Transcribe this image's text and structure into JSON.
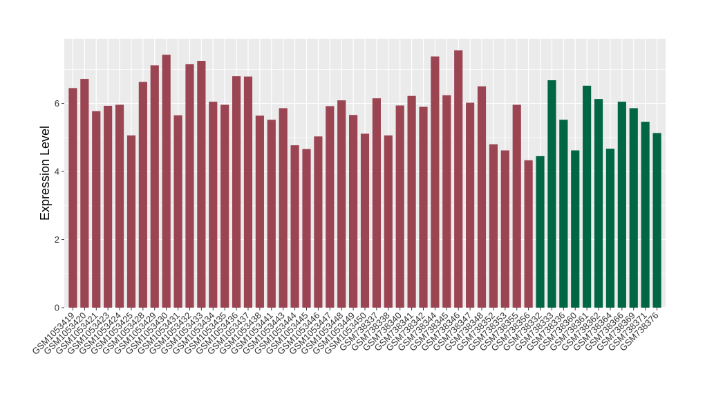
{
  "chart_data": {
    "type": "bar",
    "title": "",
    "xlabel": "",
    "ylabel": "Expression Level",
    "ylim": [
      0,
      7.9
    ],
    "yticks": [
      0,
      2,
      4,
      6
    ],
    "grid": true,
    "legend": "none",
    "colors": {
      "group1": "#9b4452",
      "group2": "#006644",
      "panel": "#ebebeb",
      "gridline": "#ffffff"
    },
    "categories": [
      "GSM1053419",
      "GSM1053420",
      "GSM1053421",
      "GSM1053423",
      "GSM1053424",
      "GSM1053425",
      "GSM1053428",
      "GSM1053429",
      "GSM1053430",
      "GSM1053431",
      "GSM1053432",
      "GSM1053433",
      "GSM1053434",
      "GSM1053435",
      "GSM1053436",
      "GSM1053437",
      "GSM1053438",
      "GSM1053441",
      "GSM1053443",
      "GSM1053444",
      "GSM1053445",
      "GSM1053446",
      "GSM1053447",
      "GSM1053448",
      "GSM1053449",
      "GSM1053450",
      "GSM738337",
      "GSM738338",
      "GSM738340",
      "GSM738341",
      "GSM738342",
      "GSM738344",
      "GSM738345",
      "GSM738346",
      "GSM738347",
      "GSM738348",
      "GSM738352",
      "GSM738353",
      "GSM738355",
      "GSM738356",
      "GSM738332",
      "GSM738333",
      "GSM738336",
      "GSM738360",
      "GSM738361",
      "GSM738362",
      "GSM738364",
      "GSM738366",
      "GSM738369",
      "GSM738371",
      "GSM738376"
    ],
    "values": [
      6.45,
      6.72,
      5.77,
      5.93,
      5.96,
      5.06,
      6.63,
      7.12,
      7.43,
      5.65,
      7.15,
      7.25,
      6.05,
      5.96,
      6.8,
      6.79,
      5.64,
      5.52,
      5.86,
      4.77,
      4.66,
      5.03,
      5.92,
      6.09,
      5.66,
      5.11,
      6.15,
      5.06,
      5.94,
      6.22,
      5.9,
      7.38,
      6.24,
      7.56,
      6.02,
      6.5,
      4.8,
      4.62,
      5.96,
      4.33,
      4.45,
      6.68,
      5.52,
      4.62,
      6.52,
      6.13,
      4.67,
      6.05,
      5.86,
      5.46,
      5.13
    ],
    "groups": [
      1,
      1,
      1,
      1,
      1,
      1,
      1,
      1,
      1,
      1,
      1,
      1,
      1,
      1,
      1,
      1,
      1,
      1,
      1,
      1,
      1,
      1,
      1,
      1,
      1,
      1,
      1,
      1,
      1,
      1,
      1,
      1,
      1,
      1,
      1,
      1,
      1,
      1,
      1,
      1,
      2,
      2,
      2,
      2,
      2,
      2,
      2,
      2,
      2,
      2,
      2
    ]
  }
}
